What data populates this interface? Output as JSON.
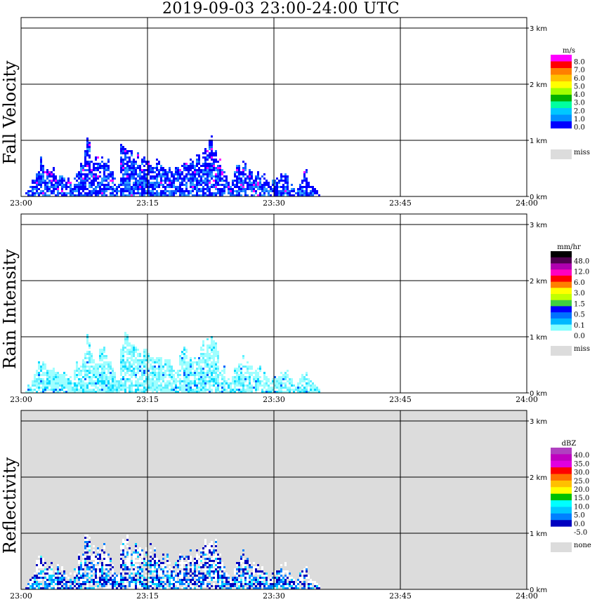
{
  "title": "2019-09-03   23:00-24:00 UTC",
  "colors": {
    "missing": "#dcdcdc",
    "grid": "#000000"
  },
  "chart_data": [
    {
      "type": "heatmap",
      "ylabel": "Fall Velocity",
      "x_ticks": [
        "23:00",
        "23:15",
        "23:30",
        "23:45",
        "24:00"
      ],
      "y_ticks": [
        "0 km",
        "1 km",
        "2 km",
        "3 km"
      ],
      "ylim": [
        0,
        3
      ],
      "grid": true,
      "legend_unit": "m/s",
      "legend_colors": [
        "#ff00ff",
        "#ff0000",
        "#ff7f00",
        "#ffc000",
        "#ffff00",
        "#a0ff00",
        "#00b000",
        "#00ffa0",
        "#00c8ff",
        "#0090ff",
        "#0000ff"
      ],
      "legend_labels": [
        "8.0",
        "7.0",
        "6.0",
        "5.0",
        "4.0",
        "3.0",
        "2.0",
        "1.0",
        "0.0"
      ],
      "missing_label": "miss",
      "background": "#ffffff",
      "palette": [
        "#0000ff",
        "#1060ff",
        "#30a0ff",
        "#ff00ff"
      ],
      "base_weights": [
        0.6,
        0.2,
        0.12,
        0.08
      ],
      "core_weights": [
        0.3,
        0.35,
        0.35,
        0
      ]
    },
    {
      "type": "heatmap",
      "ylabel": "Rain Intensity",
      "x_ticks": [
        "23:00",
        "23:15",
        "23:30",
        "23:45",
        "24:00"
      ],
      "y_ticks": [
        "0 km",
        "1 km",
        "2 km",
        "3 km"
      ],
      "ylim": [
        0,
        3
      ],
      "grid": true,
      "legend_unit": "mm/hr",
      "legend_colors": [
        "#000000",
        "#500050",
        "#b000b0",
        "#ff00c0",
        "#ff0000",
        "#ff8000",
        "#ffff00",
        "#c0ff00",
        "#40d040",
        "#0000ff",
        "#0070ff",
        "#00b8ff",
        "#80ffff",
        "#ffffff"
      ],
      "legend_labels": [
        "48.0",
        "12.0",
        "6.0",
        "3.0",
        "1.5",
        "0.5",
        "0.1",
        "0.0"
      ],
      "missing_label": "miss",
      "background": "#ffffff",
      "palette": [
        "#a0ffff",
        "#60f0ff",
        "#00d8ff",
        "#0060ff"
      ],
      "base_weights": [
        0.7,
        0.22,
        0.06,
        0.02
      ],
      "core_weights": [
        0.3,
        0.3,
        0.3,
        0.1
      ]
    },
    {
      "type": "heatmap",
      "ylabel": "Reflectivity",
      "x_ticks": [
        "23:00",
        "23:15",
        "23:30",
        "23:45",
        "24:00"
      ],
      "y_ticks": [
        "0 km",
        "1 km",
        "2 km",
        "3 km"
      ],
      "ylim": [
        0,
        3
      ],
      "grid": true,
      "legend_unit": "dBZ",
      "legend_colors": [
        "#b040c0",
        "#c000c0",
        "#e000e0",
        "#ff0000",
        "#ff7000",
        "#ffc000",
        "#ffff00",
        "#00c000",
        "#00ffff",
        "#00c8ff",
        "#0080ff",
        "#0000c0",
        "#ffffff"
      ],
      "legend_labels": [
        "40.0",
        "35.0",
        "30.0",
        "25.0",
        "20.0",
        "15.0",
        "10.0",
        "5.0",
        "0.0",
        "-5.0"
      ],
      "missing_label": "none",
      "background": "#dcdcdc",
      "palette": [
        "#ffffff",
        "#0000c0",
        "#0080ff",
        "#00d0ff",
        "#40ffff"
      ],
      "base_weights": [
        0.55,
        0.25,
        0.12,
        0.06,
        0.02
      ],
      "core_weights": [
        0.05,
        0.3,
        0.35,
        0.25,
        0.05
      ]
    }
  ],
  "echo_profile": [
    [
      0.4,
      0.01
    ],
    [
      0.75,
      0.1
    ],
    [
      1.4,
      0.28
    ],
    [
      1.75,
      0.45
    ],
    [
      2.3,
      0.6
    ],
    [
      2.8,
      0.42
    ],
    [
      3.6,
      0.44
    ],
    [
      4.2,
      0.35
    ],
    [
      5.6,
      0.3
    ],
    [
      6.0,
      0.15
    ],
    [
      6.4,
      0.45
    ],
    [
      6.9,
      0.55
    ],
    [
      7.3,
      0.6
    ],
    [
      7.6,
      1.15
    ],
    [
      8.3,
      0.7
    ],
    [
      9.0,
      0.6
    ],
    [
      9.7,
      0.75
    ],
    [
      10.3,
      0.55
    ],
    [
      10.8,
      0.45
    ],
    [
      11.2,
      0.25
    ],
    [
      11.5,
      0.2
    ],
    [
      11.8,
      0.95
    ],
    [
      12.3,
      1.05
    ],
    [
      12.8,
      0.75
    ],
    [
      13.5,
      0.7
    ],
    [
      14.2,
      0.65
    ],
    [
      15.0,
      0.7
    ],
    [
      16.0,
      0.6
    ],
    [
      16.8,
      0.55
    ],
    [
      17.5,
      0.5
    ],
    [
      18.3,
      0.45
    ],
    [
      18.8,
      0.6
    ],
    [
      19.3,
      0.7
    ],
    [
      20.5,
      0.55
    ],
    [
      21.3,
      0.75
    ],
    [
      22.0,
      0.85
    ],
    [
      22.6,
      0.95
    ],
    [
      23.2,
      0.65
    ],
    [
      23.8,
      0.45
    ],
    [
      24.3,
      0.3
    ],
    [
      24.8,
      0.15
    ],
    [
      25.6,
      0.55
    ],
    [
      26.2,
      0.6
    ],
    [
      26.8,
      0.45
    ],
    [
      27.5,
      0.4
    ],
    [
      28.4,
      0.4
    ],
    [
      29.4,
      0.2
    ],
    [
      30.5,
      0.35
    ],
    [
      31.3,
      0.45
    ],
    [
      31.8,
      0.25
    ],
    [
      32.5,
      0.1
    ],
    [
      33.2,
      0.3
    ],
    [
      33.7,
      0.45
    ],
    [
      34.1,
      0.2
    ],
    [
      34.9,
      0.12
    ],
    [
      35.3,
      0.05
    ]
  ]
}
